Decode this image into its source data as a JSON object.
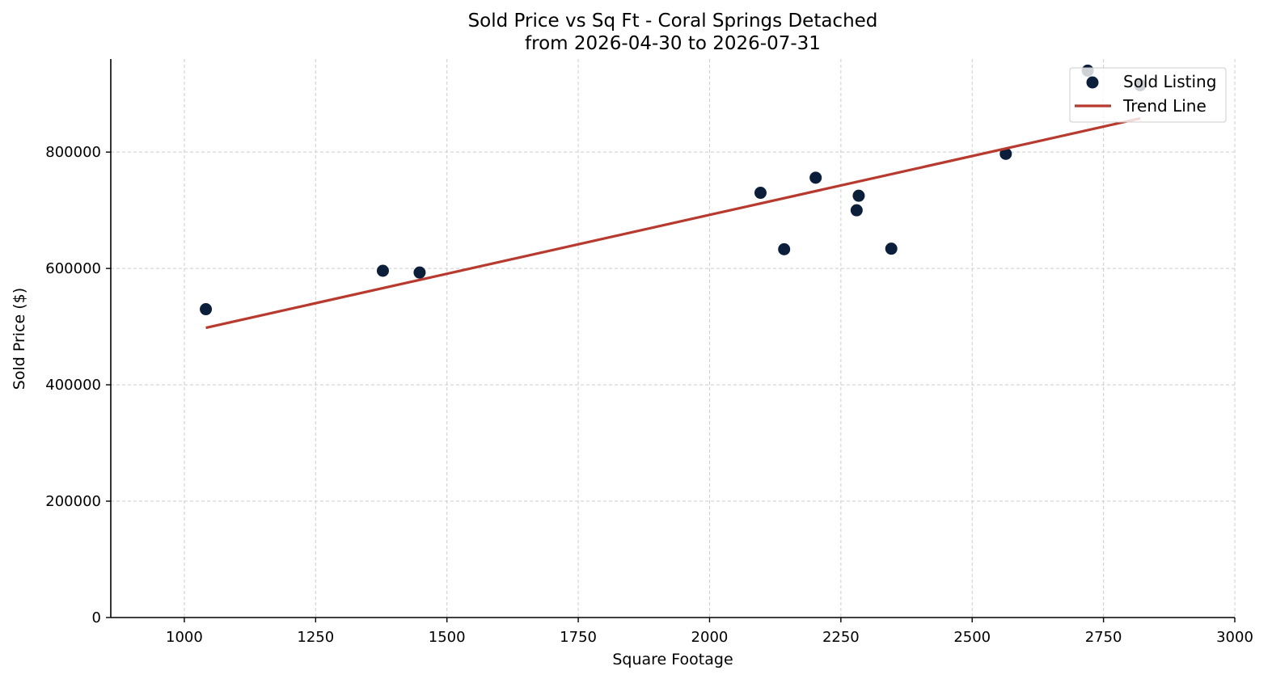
{
  "chart_data": {
    "type": "scatter",
    "title": "Sold Price vs Sq Ft - Coral Springs Detached",
    "subtitle": "from 2026-04-30 to 2026-07-31",
    "xlabel": "Square Footage",
    "ylabel": "Sold Price ($)",
    "xlim": [
      860,
      3000
    ],
    "ylim": [
      0,
      960000
    ],
    "x_ticks": [
      1000,
      1250,
      1500,
      1750,
      2000,
      2250,
      2500,
      2750,
      3000
    ],
    "y_ticks": [
      0,
      200000,
      400000,
      600000,
      800000
    ],
    "grid": true,
    "legend_position": "top-right",
    "series": [
      {
        "name": "Sold Listing",
        "kind": "scatter",
        "color": "#0b1f3a",
        "points": [
          {
            "x": 1041,
            "y": 530000
          },
          {
            "x": 1378,
            "y": 596000
          },
          {
            "x": 1448,
            "y": 593000
          },
          {
            "x": 2097,
            "y": 730000
          },
          {
            "x": 2142,
            "y": 633000
          },
          {
            "x": 2202,
            "y": 756000
          },
          {
            "x": 2280,
            "y": 700000
          },
          {
            "x": 2284,
            "y": 725000
          },
          {
            "x": 2346,
            "y": 634000
          },
          {
            "x": 2564,
            "y": 797000
          },
          {
            "x": 2720,
            "y": 940000
          },
          {
            "x": 2820,
            "y": 915000
          }
        ]
      },
      {
        "name": "Trend Line",
        "kind": "line",
        "color": "#b83a2e",
        "points": [
          {
            "x": 1041,
            "y": 498000
          },
          {
            "x": 2820,
            "y": 858000
          }
        ]
      }
    ]
  }
}
